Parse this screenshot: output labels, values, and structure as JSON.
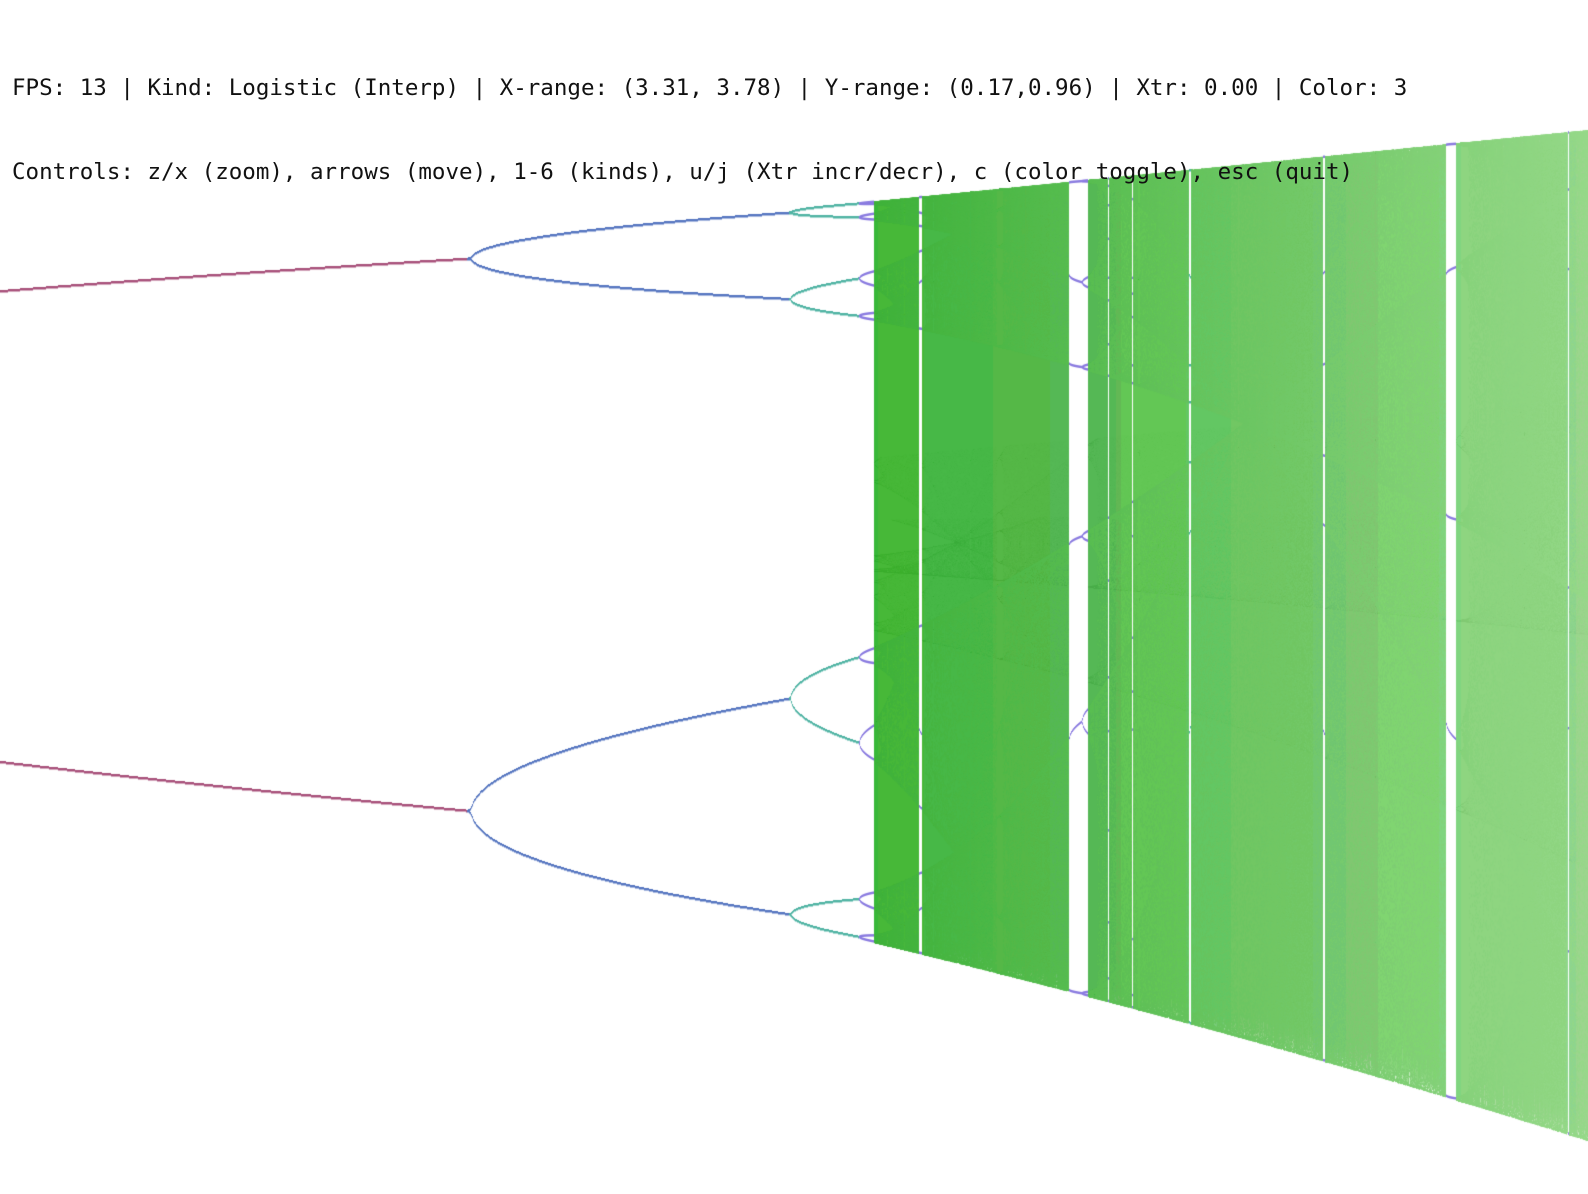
{
  "hud": {
    "status_line": "FPS: 13 | Kind: Logistic (Interp) | X-range: (3.31, 3.78) | Y-range: (0.17,0.96) | Xtr: 0.00 | Color: 3",
    "controls_line": "Controls: z/x (zoom), arrows (move), 1-6 (kinds), u/j (Xtr incr/decr), c (color toggle), esc (quit)"
  },
  "view": {
    "kind": "Logistic (Interp)",
    "x_range": [
      3.31,
      3.78
    ],
    "y_range": [
      0.17,
      0.96
    ],
    "xtr": 0.0,
    "color_mode": 3,
    "fps": 13
  },
  "palette": {
    "background": "#ffffff",
    "period_1": "#3d6b3d",
    "period_2": "#a8507a",
    "period_4": "#5575c0",
    "period_8": "#4fb3a3",
    "chaos_dark": "#3fb23a",
    "chaos_light": "#96d989",
    "window_edge": "#8a7be0"
  }
}
